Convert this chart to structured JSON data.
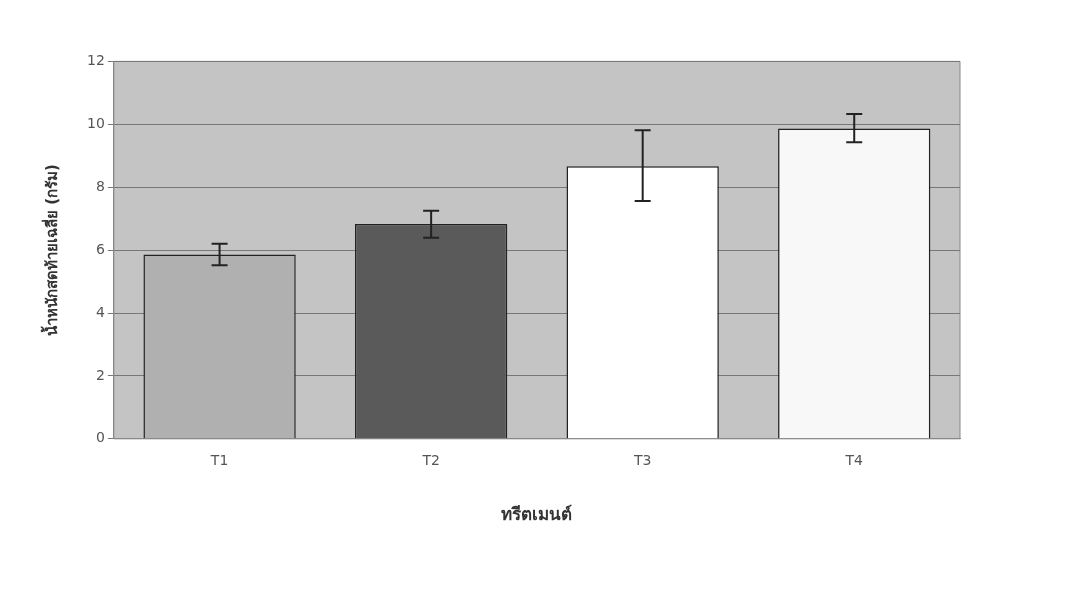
{
  "chart_data": {
    "type": "bar",
    "xlabel": "ทรีตเมนต์",
    "ylabel": "น้ำหนักสดท้ายเฉลี่ย (กรัม)",
    "categories": [
      "T1",
      "T2",
      "T3",
      "T4"
    ],
    "values": [
      5.86,
      6.83,
      8.67,
      9.87
    ],
    "colors": [
      "#b0b0b0",
      "#5a5a5a",
      "#ffffff",
      "#f8f8f8"
    ],
    "errors": [
      [
        5.52,
        6.2
      ],
      [
        6.39,
        7.25
      ],
      [
        7.56,
        9.81
      ],
      [
        9.43,
        10.33
      ]
    ],
    "ylim": [
      0,
      12
    ],
    "yticks": [
      0,
      2,
      4,
      6,
      8,
      10,
      12
    ],
    "grid": "y",
    "legend": false
  }
}
